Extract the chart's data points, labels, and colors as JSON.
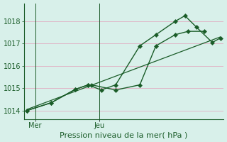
{
  "xlabel": "Pression niveau de la mer( hPa )",
  "background_color": "#d8f0ea",
  "grid_color": "#e0b8c8",
  "line_color": "#1a5c28",
  "xtick_labels": [
    "Mer",
    "Jeu"
  ],
  "xtick_positions": [
    0.5,
    4.5
  ],
  "ylim": [
    1013.6,
    1018.8
  ],
  "yticks": [
    1014,
    1015,
    1016,
    1017,
    1018
  ],
  "xlim": [
    -0.2,
    12.2
  ],
  "series1_x": [
    0,
    1.5,
    3.0,
    3.8,
    4.0,
    5.5,
    7.0,
    8.0,
    9.2,
    10.0,
    11.0
  ],
  "series1_y": [
    1014.0,
    1014.35,
    1014.95,
    1015.15,
    1015.15,
    1014.92,
    1015.15,
    1016.9,
    1017.4,
    1017.55,
    1017.55
  ],
  "series2_x": [
    0,
    1.5,
    3.0,
    3.8,
    4.6,
    5.5,
    7.0,
    8.0,
    9.2,
    9.8,
    10.5,
    11.5,
    12.0
  ],
  "series2_y": [
    1014.0,
    1014.35,
    1014.95,
    1015.15,
    1014.92,
    1015.15,
    1016.9,
    1017.4,
    1018.0,
    1018.25,
    1017.75,
    1017.05,
    1017.25
  ],
  "trend_x": [
    0,
    12.0
  ],
  "trend_y": [
    1014.05,
    1017.3
  ],
  "vline_positions": [
    0.5,
    4.5
  ],
  "fontsize_label": 8,
  "fontsize_tick": 7,
  "marker_size": 3
}
